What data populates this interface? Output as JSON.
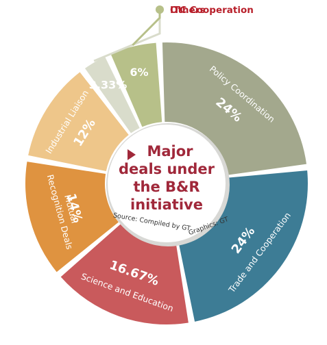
{
  "chart_data": {
    "type": "pie",
    "title": "Major deals under the B&R initiative",
    "title_lines": [
      "Major",
      "deals under",
      "the B&R",
      "initiative"
    ],
    "source": "Source: Compiled by GT",
    "graphics": "Graphics: GT",
    "slices": [
      {
        "label": "Policy Coordination",
        "value": 24,
        "value_label": "24%",
        "color": "#a3a88d",
        "label_color": "#ffffff"
      },
      {
        "label": "Trade and Cooperation",
        "value": 24,
        "value_label": "24%",
        "color": "#3d7c95",
        "label_color": "#ffffff"
      },
      {
        "label": "Science and Education",
        "value": 16.67,
        "value_label": "16.67%",
        "color": "#c95a5c",
        "label_color": "#ffffff"
      },
      {
        "label": "Mutual Recognition Deals",
        "label_lines": [
          "Mutual",
          "Recognition Deals"
        ],
        "value": 14,
        "value_label": "14%",
        "color": "#df9340",
        "label_color": "#ffffff"
      },
      {
        "label": "Industrial Liaison",
        "value": 12,
        "value_label": "12%",
        "color": "#eec68a",
        "label_color": "#ffffff"
      },
      {
        "label": "ITC Cooperation",
        "value": 3.33,
        "value_label": "3.33%",
        "color": "#d9dccb",
        "label_color": "#b81f2a"
      },
      {
        "label": "Others",
        "value": 6,
        "value_label": "6%",
        "color": "#b7c089",
        "label_color": "#b81f2a"
      }
    ],
    "accent_color": "#a0283a"
  }
}
